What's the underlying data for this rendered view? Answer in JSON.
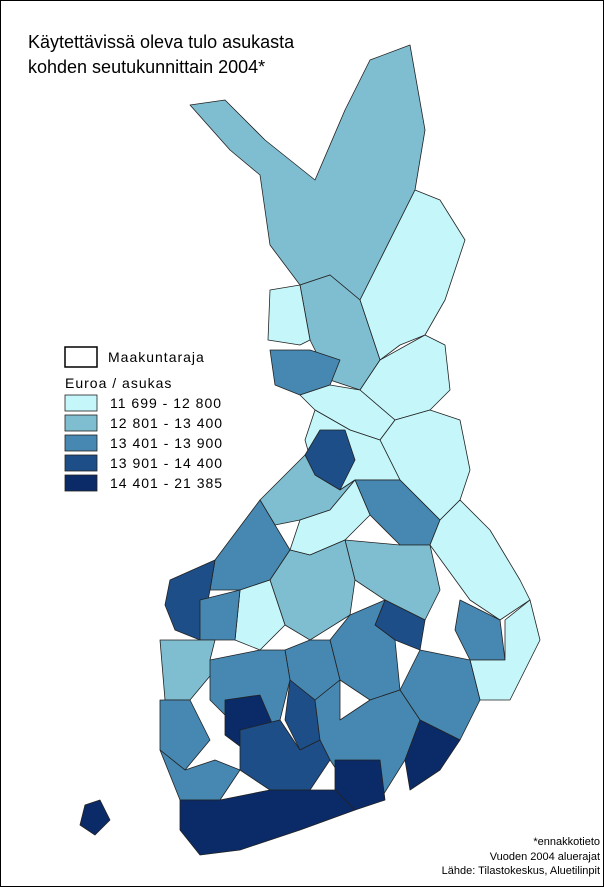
{
  "title": [
    "Käytettävissä oleva tulo asukasta",
    "kohden seutukunnittain 2004*"
  ],
  "legend": {
    "boundary": "Maakuntaraja",
    "unit": "Euroa / asukas",
    "classes": [
      {
        "label": "11 699 - 12 800",
        "color": "#c4f6fa"
      },
      {
        "label": "12 801 - 13 400",
        "color": "#7fbed0"
      },
      {
        "label": "13 401 - 13 900",
        "color": "#4688b2"
      },
      {
        "label": "13 901 - 14 400",
        "color": "#1d4e88"
      },
      {
        "label": "14 401 - 21 385",
        "color": "#0a2a68"
      }
    ]
  },
  "footnotes": [
    "*ennakkotieto",
    "Vuoden 2004 aluerajat",
    "Lähde: Tilastokeskus, Aluetilinpit"
  ]
}
